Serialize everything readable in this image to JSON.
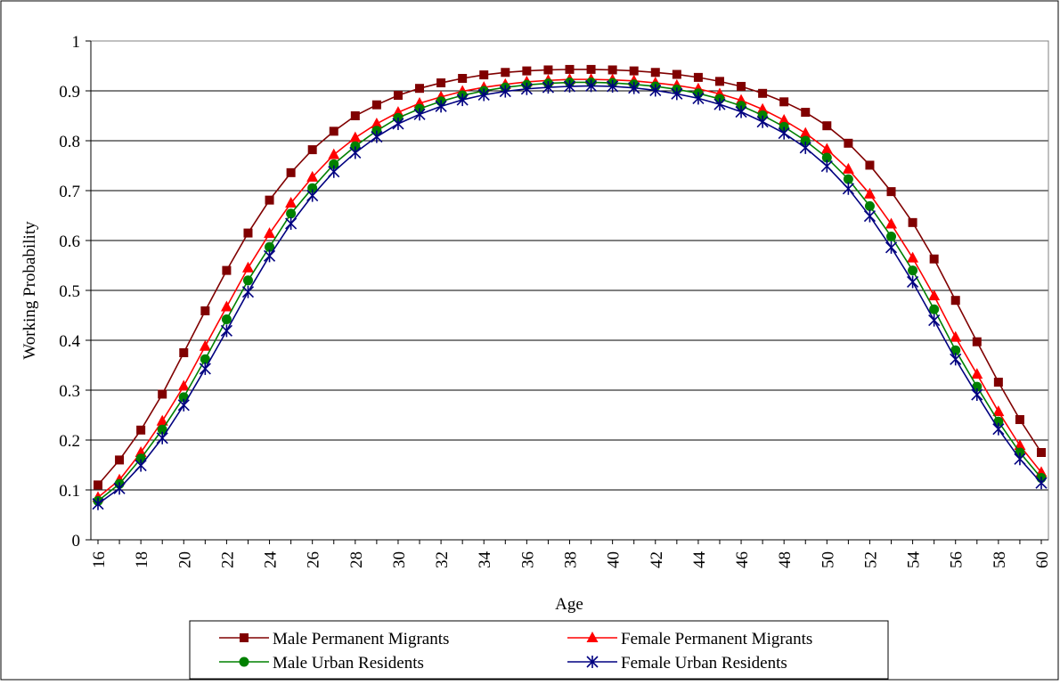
{
  "chart_data": {
    "type": "line",
    "title": "",
    "xlabel": "Age",
    "ylabel": "Working Probability",
    "x": [
      16,
      17,
      18,
      19,
      20,
      21,
      22,
      23,
      24,
      25,
      26,
      27,
      28,
      29,
      30,
      31,
      32,
      33,
      34,
      35,
      36,
      37,
      38,
      39,
      40,
      41,
      42,
      43,
      44,
      45,
      46,
      47,
      48,
      49,
      50,
      51,
      52,
      53,
      54,
      55,
      56,
      57,
      58,
      59,
      60
    ],
    "x_tick_labels": [
      "16",
      "18",
      "20",
      "22",
      "24",
      "26",
      "28",
      "30",
      "32",
      "34",
      "36",
      "38",
      "40",
      "42",
      "44",
      "46",
      "48",
      "50",
      "52",
      "54",
      "56",
      "58",
      "60"
    ],
    "y_tick_labels": [
      "0",
      "0.1",
      "0.2",
      "0.3",
      "0.4",
      "0.5",
      "0.6",
      "0.7",
      "0.8",
      "0.9",
      "1"
    ],
    "ylim": [
      0,
      1
    ],
    "xlim": [
      16,
      60
    ],
    "grid": "horizontal",
    "legend_position": "bottom",
    "series": [
      {
        "name": "Male Permanent Migrants",
        "color": "#800000",
        "marker": "square",
        "values": [
          0.11,
          0.16,
          0.22,
          0.292,
          0.375,
          0.459,
          0.54,
          0.615,
          0.681,
          0.736,
          0.782,
          0.819,
          0.85,
          0.872,
          0.891,
          0.905,
          0.916,
          0.925,
          0.932,
          0.937,
          0.94,
          0.942,
          0.943,
          0.943,
          0.942,
          0.94,
          0.937,
          0.933,
          0.927,
          0.919,
          0.909,
          0.895,
          0.878,
          0.857,
          0.83,
          0.795,
          0.751,
          0.698,
          0.636,
          0.563,
          0.48,
          0.397,
          0.316,
          0.241,
          0.175
        ]
      },
      {
        "name": "Female Permanent Migrants",
        "color": "#ff0000",
        "marker": "triangle",
        "values": [
          0.085,
          0.12,
          0.175,
          0.238,
          0.308,
          0.388,
          0.467,
          0.545,
          0.614,
          0.675,
          0.727,
          0.772,
          0.806,
          0.834,
          0.857,
          0.875,
          0.888,
          0.899,
          0.907,
          0.913,
          0.918,
          0.921,
          0.923,
          0.923,
          0.922,
          0.92,
          0.916,
          0.911,
          0.904,
          0.894,
          0.881,
          0.863,
          0.841,
          0.815,
          0.783,
          0.743,
          0.693,
          0.633,
          0.565,
          0.489,
          0.406,
          0.332,
          0.257,
          0.189,
          0.135
        ]
      },
      {
        "name": "Male Urban Residents",
        "color": "#008000",
        "marker": "circle",
        "values": [
          0.078,
          0.112,
          0.163,
          0.221,
          0.286,
          0.362,
          0.442,
          0.52,
          0.587,
          0.654,
          0.705,
          0.753,
          0.789,
          0.82,
          0.846,
          0.864,
          0.879,
          0.891,
          0.9,
          0.907,
          0.912,
          0.915,
          0.917,
          0.917,
          0.916,
          0.913,
          0.909,
          0.903,
          0.895,
          0.884,
          0.87,
          0.851,
          0.828,
          0.8,
          0.766,
          0.723,
          0.669,
          0.608,
          0.54,
          0.462,
          0.38,
          0.307,
          0.237,
          0.175,
          0.124
        ]
      },
      {
        "name": "Female Urban Residents",
        "color": "#000080",
        "marker": "asterisk",
        "values": [
          0.072,
          0.103,
          0.149,
          0.204,
          0.27,
          0.343,
          0.419,
          0.497,
          0.569,
          0.634,
          0.69,
          0.738,
          0.776,
          0.808,
          0.834,
          0.853,
          0.869,
          0.882,
          0.892,
          0.899,
          0.904,
          0.907,
          0.909,
          0.91,
          0.909,
          0.906,
          0.901,
          0.894,
          0.885,
          0.873,
          0.858,
          0.838,
          0.815,
          0.786,
          0.749,
          0.704,
          0.649,
          0.586,
          0.517,
          0.44,
          0.362,
          0.291,
          0.222,
          0.162,
          0.114
        ]
      }
    ]
  }
}
